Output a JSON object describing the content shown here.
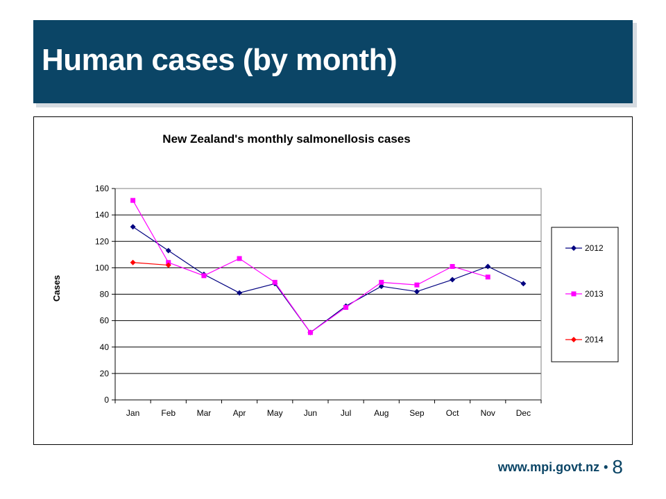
{
  "slide": {
    "title": "Human cases (by month)",
    "footer_url": "www.mpi.govt.nz",
    "footer_separator": "•",
    "page_number": "8",
    "colors": {
      "header_bg": "#0b4566",
      "footer_text": "#0b4566"
    }
  },
  "chart_data": {
    "type": "line",
    "title": "New Zealand's monthly salmonellosis cases",
    "xlabel": "",
    "ylabel": "Cases",
    "categories": [
      "Jan",
      "Feb",
      "Mar",
      "Apr",
      "May",
      "Jun",
      "Jul",
      "Aug",
      "Sep",
      "Oct",
      "Nov",
      "Dec"
    ],
    "ylim": [
      0,
      160
    ],
    "yticks": [
      0,
      20,
      40,
      60,
      80,
      100,
      120,
      140,
      160
    ],
    "grid": true,
    "legend_position": "right",
    "series": [
      {
        "name": "2012",
        "color": "#000080",
        "marker": "diamond",
        "values": [
          131,
          113,
          95,
          81,
          88,
          51,
          71,
          86,
          82,
          91,
          101,
          88
        ]
      },
      {
        "name": "2013",
        "color": "#ff00ff",
        "marker": "square",
        "values": [
          151,
          104,
          94,
          107,
          89,
          51,
          70,
          89,
          87,
          101,
          93,
          null
        ]
      },
      {
        "name": "2014",
        "color": "#ff0000",
        "marker": "diamond",
        "values": [
          104,
          102,
          null,
          null,
          null,
          null,
          null,
          null,
          null,
          null,
          null,
          null
        ]
      }
    ]
  }
}
